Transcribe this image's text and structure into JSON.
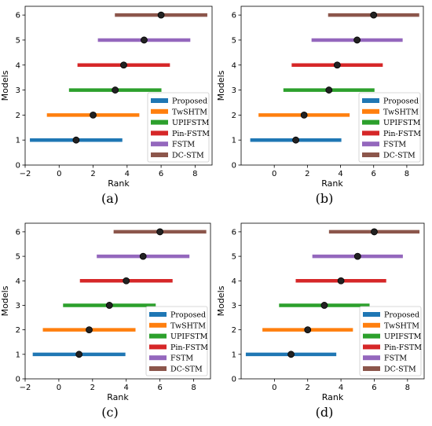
{
  "chart_data": [
    {
      "type": "errorbar",
      "panel_label": "(a)",
      "xlabel": "Rank",
      "ylabel": "Models",
      "xlim": [
        -2,
        9
      ],
      "ylim": [
        0,
        6.35
      ],
      "xticks": [
        "-2",
        "0",
        "2",
        "4",
        "6",
        "8"
      ],
      "yticks": [
        "0",
        "1",
        "2",
        "3",
        "4",
        "5",
        "6"
      ],
      "legend_position": "lower-right",
      "series": [
        {
          "name": "Proposed",
          "y": 1,
          "mean": 1.0,
          "low": -1.72,
          "high": 3.72,
          "color": "#1f77b4"
        },
        {
          "name": "TwSHTM",
          "y": 2,
          "mean": 2.0,
          "low": -0.72,
          "high": 4.72,
          "color": "#ff7f0e"
        },
        {
          "name": "UPIFSTM",
          "y": 3,
          "mean": 3.3,
          "low": 0.58,
          "high": 6.02,
          "color": "#2ca02c"
        },
        {
          "name": "Pin-FSTM",
          "y": 4,
          "mean": 3.8,
          "low": 1.08,
          "high": 6.52,
          "color": "#d62728"
        },
        {
          "name": "FSTM",
          "y": 5,
          "mean": 5.0,
          "low": 2.28,
          "high": 7.72,
          "color": "#9467bd"
        },
        {
          "name": "DC-STM",
          "y": 6,
          "mean": 6.0,
          "low": 3.28,
          "high": 8.72,
          "color": "#8c564b"
        }
      ]
    },
    {
      "type": "errorbar",
      "panel_label": "(b)",
      "xlabel": "Rank",
      "ylabel": "Models",
      "xlim": [
        -2,
        9
      ],
      "ylim": [
        0,
        6.35
      ],
      "xticks": [
        "0",
        "2",
        "4",
        "6",
        "8"
      ],
      "yticks": [
        "0",
        "1",
        "2",
        "3",
        "4",
        "5",
        "6"
      ],
      "legend_position": "lower-right",
      "series": [
        {
          "name": "Proposed",
          "y": 1,
          "mean": 1.3,
          "low": -1.45,
          "high": 4.05,
          "color": "#1f77b4"
        },
        {
          "name": "TwSHTM",
          "y": 2,
          "mean": 1.8,
          "low": -0.95,
          "high": 4.55,
          "color": "#ff7f0e"
        },
        {
          "name": "UPIFSTM",
          "y": 3,
          "mean": 3.3,
          "low": 0.55,
          "high": 6.05,
          "color": "#2ca02c"
        },
        {
          "name": "Pin-FSTM",
          "y": 4,
          "mean": 3.8,
          "low": 1.05,
          "high": 6.55,
          "color": "#d62728"
        },
        {
          "name": "FSTM",
          "y": 5,
          "mean": 5.0,
          "low": 2.25,
          "high": 7.75,
          "color": "#9467bd"
        },
        {
          "name": "DC-STM",
          "y": 6,
          "mean": 6.0,
          "low": 3.25,
          "high": 8.75,
          "color": "#8c564b"
        }
      ]
    },
    {
      "type": "errorbar",
      "panel_label": "(c)",
      "xlabel": "Rank",
      "ylabel": "Models",
      "xlim": [
        -2,
        9
      ],
      "ylim": [
        0,
        6.35
      ],
      "xticks": [
        "-2",
        "0",
        "2",
        "4",
        "6",
        "8"
      ],
      "yticks": [
        "0",
        "1",
        "2",
        "3",
        "4",
        "5",
        "6"
      ],
      "legend_position": "lower-right",
      "series": [
        {
          "name": "Proposed",
          "y": 1,
          "mean": 1.2,
          "low": -1.55,
          "high": 3.95,
          "color": "#1f77b4"
        },
        {
          "name": "TwSHTM",
          "y": 2,
          "mean": 1.8,
          "low": -0.95,
          "high": 4.55,
          "color": "#ff7f0e"
        },
        {
          "name": "UPIFSTM",
          "y": 3,
          "mean": 3.0,
          "low": 0.25,
          "high": 5.75,
          "color": "#2ca02c"
        },
        {
          "name": "Pin-FSTM",
          "y": 4,
          "mean": 4.0,
          "low": 1.25,
          "high": 6.75,
          "color": "#d62728"
        },
        {
          "name": "FSTM",
          "y": 5,
          "mean": 5.0,
          "low": 2.25,
          "high": 7.75,
          "color": "#9467bd"
        },
        {
          "name": "DC-STM",
          "y": 6,
          "mean": 6.0,
          "low": 3.25,
          "high": 8.75,
          "color": "#8c564b"
        }
      ]
    },
    {
      "type": "errorbar",
      "panel_label": "(d)",
      "xlabel": "Rank",
      "ylabel": "Models",
      "xlim": [
        -2,
        9
      ],
      "ylim": [
        0,
        6.35
      ],
      "xticks": [
        "0",
        "2",
        "4",
        "6",
        "8"
      ],
      "yticks": [
        "0",
        "1",
        "2",
        "3",
        "4",
        "5",
        "6"
      ],
      "legend_position": "lower-right",
      "series": [
        {
          "name": "Proposed",
          "y": 1,
          "mean": 1.0,
          "low": -1.72,
          "high": 3.72,
          "color": "#1f77b4"
        },
        {
          "name": "TwSHTM",
          "y": 2,
          "mean": 2.0,
          "low": -0.72,
          "high": 4.72,
          "color": "#ff7f0e"
        },
        {
          "name": "UPIFSTM",
          "y": 3,
          "mean": 3.0,
          "low": 0.28,
          "high": 5.72,
          "color": "#2ca02c"
        },
        {
          "name": "Pin-FSTM",
          "y": 4,
          "mean": 4.0,
          "low": 1.28,
          "high": 6.72,
          "color": "#d62728"
        },
        {
          "name": "FSTM",
          "y": 5,
          "mean": 5.0,
          "low": 2.28,
          "high": 7.72,
          "color": "#9467bd"
        },
        {
          "name": "DC-STM",
          "y": 6,
          "mean": 6.0,
          "low": 3.28,
          "high": 8.72,
          "color": "#8c564b"
        }
      ]
    }
  ]
}
